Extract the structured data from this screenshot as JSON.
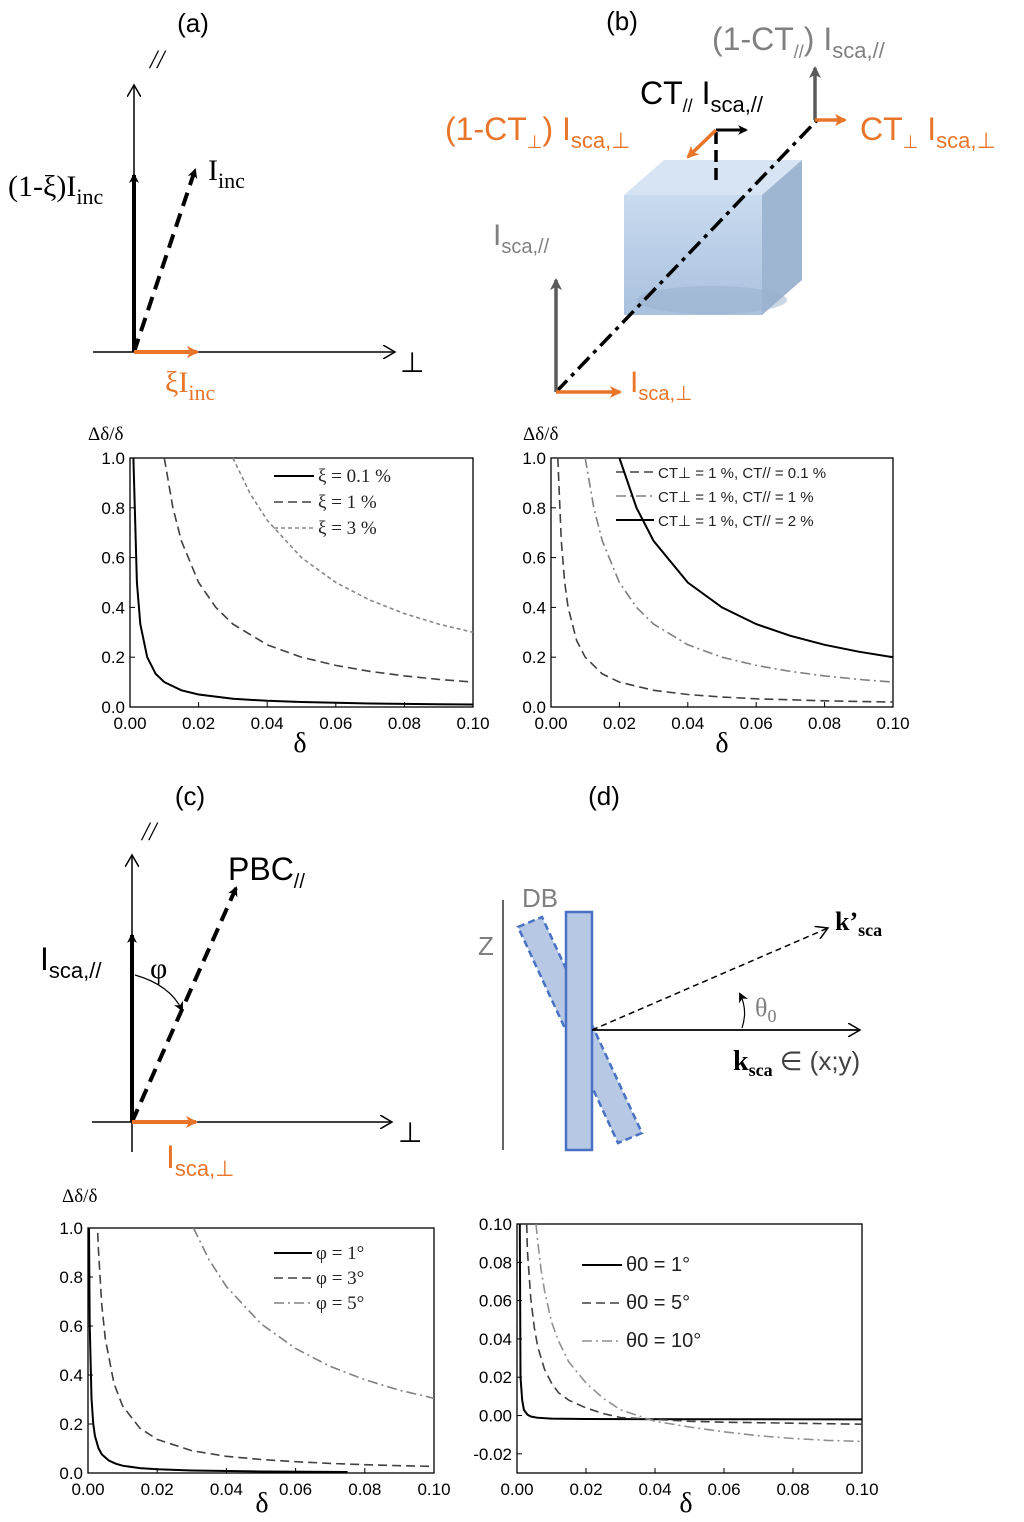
{
  "colors": {
    "orange": "#e8752a",
    "gray": "#808080",
    "black": "#000000",
    "blue_fill": "#b7c8e4",
    "blue_edge": "#4a72c4"
  },
  "panel_a": {
    "label": "(a)",
    "axis_parallel": "//",
    "axis_perp": "⊥",
    "vec_vertical": "(1-ξ)I",
    "vec_vertical_sub": "inc",
    "vec_diag": "I",
    "vec_diag_sub": "inc",
    "vec_horizontal": "ξI",
    "vec_horizontal_sub": "inc"
  },
  "panel_b": {
    "label": "(b)",
    "top_gray": "(1-CT",
    "top_gray_sub": "//",
    "top_gray_tail": ") I",
    "top_gray_tail_sub": "sca,//",
    "mid_black": "CT",
    "mid_black_sub": "//",
    "mid_black_tail": " I",
    "mid_black_tail_sub": "sca,//",
    "left_orange": "(1-CT",
    "left_orange_sub": "⊥",
    "left_orange_tail": ") I",
    "left_orange_tail_sub": "sca,⊥",
    "right_orange": "CT",
    "right_orange_sub": "⊥",
    "right_orange_tail": " I",
    "right_orange_tail_sub": "sca,⊥",
    "origin_gray": "I",
    "origin_gray_sub": "sca,//",
    "origin_orange": "I",
    "origin_orange_sub": "sca,⊥"
  },
  "panel_c": {
    "label": "(c)",
    "axis_parallel": "//",
    "axis_perp": "⊥",
    "pbc": "PBC",
    "pbc_sub": "//",
    "vertical": "I",
    "vertical_sub": "sca,//",
    "phi": "φ",
    "horizontal": "I",
    "horizontal_sub": "sca,⊥"
  },
  "panel_d": {
    "label": "(d)",
    "db": "DB",
    "z": "Z",
    "kprime": "k’",
    "kprime_sub": "sca",
    "theta": "θ",
    "theta_sub": "0",
    "k": "k",
    "k_sub": "sca",
    "k_tail": " ∈ (x;y)"
  },
  "chart_data": [
    {
      "id": "chart-a",
      "type": "line",
      "ylabel": "Δδ/δ",
      "xlabel": "δ",
      "xlim": [
        0,
        0.1
      ],
      "ylim": [
        0,
        1.0
      ],
      "xticks": [
        "0.00",
        "0.02",
        "0.04",
        "0.06",
        "0.08",
        "0.10"
      ],
      "yticks": [
        "0.0",
        "0.2",
        "0.4",
        "0.6",
        "0.8",
        "1.0"
      ],
      "legend_position": "top-right",
      "series": [
        {
          "name": "ξ = 0.1 %",
          "style": "solid",
          "color": "#000000",
          "x": [
            0.001,
            0.002,
            0.003,
            0.005,
            0.0075,
            0.01,
            0.015,
            0.02,
            0.03,
            0.04,
            0.05,
            0.06,
            0.07,
            0.08,
            0.09,
            0.1
          ],
          "y": [
            1.0,
            0.5,
            0.333,
            0.2,
            0.133,
            0.1,
            0.067,
            0.05,
            0.033,
            0.025,
            0.02,
            0.017,
            0.014,
            0.0125,
            0.011,
            0.01
          ]
        },
        {
          "name": "ξ = 1 %",
          "style": "dashed",
          "color": "#404040",
          "x": [
            0.01,
            0.0125,
            0.015,
            0.02,
            0.025,
            0.03,
            0.04,
            0.05,
            0.06,
            0.07,
            0.08,
            0.09,
            0.1
          ],
          "y": [
            1.0,
            0.8,
            0.667,
            0.5,
            0.4,
            0.333,
            0.25,
            0.2,
            0.167,
            0.143,
            0.125,
            0.111,
            0.1
          ]
        },
        {
          "name": "ξ = 3 %",
          "style": "dotted",
          "color": "#888888",
          "x": [
            0.03,
            0.035,
            0.04,
            0.05,
            0.06,
            0.07,
            0.08,
            0.09,
            0.1
          ],
          "y": [
            1.0,
            0.857,
            0.75,
            0.6,
            0.5,
            0.429,
            0.375,
            0.333,
            0.3
          ]
        }
      ]
    },
    {
      "id": "chart-b",
      "type": "line",
      "ylabel": "Δδ/δ",
      "xlabel": "δ",
      "xlim": [
        0,
        0.1
      ],
      "ylim": [
        0,
        1.0
      ],
      "xticks": [
        "0.00",
        "0.02",
        "0.04",
        "0.06",
        "0.08",
        "0.10"
      ],
      "yticks": [
        "0.0",
        "0.2",
        "0.4",
        "0.6",
        "0.8",
        "1.0"
      ],
      "legend_position": "top-right",
      "series": [
        {
          "name": "CT⊥ = 1 %, CT// = 0.1 %",
          "style": "dashed",
          "color": "#404040",
          "x": [
            0.002,
            0.003,
            0.004,
            0.005,
            0.0075,
            0.01,
            0.015,
            0.02,
            0.03,
            0.04,
            0.05,
            0.06,
            0.07,
            0.08,
            0.09,
            0.1
          ],
          "y": [
            1.0,
            0.667,
            0.5,
            0.4,
            0.267,
            0.2,
            0.133,
            0.1,
            0.067,
            0.05,
            0.04,
            0.033,
            0.029,
            0.025,
            0.022,
            0.02
          ]
        },
        {
          "name": "CT⊥ = 1 %, CT// = 1 %",
          "style": "dashdot",
          "color": "#808080",
          "x": [
            0.01,
            0.0125,
            0.015,
            0.02,
            0.025,
            0.03,
            0.04,
            0.05,
            0.06,
            0.07,
            0.08,
            0.09,
            0.1
          ],
          "y": [
            1.0,
            0.8,
            0.667,
            0.5,
            0.4,
            0.333,
            0.25,
            0.2,
            0.167,
            0.143,
            0.125,
            0.111,
            0.1
          ]
        },
        {
          "name": "CT⊥ = 1 %, CT// = 2 %",
          "style": "solid",
          "color": "#000000",
          "x": [
            0.02,
            0.025,
            0.03,
            0.04,
            0.05,
            0.06,
            0.07,
            0.08,
            0.09,
            0.1
          ],
          "y": [
            1.0,
            0.8,
            0.667,
            0.5,
            0.4,
            0.333,
            0.286,
            0.25,
            0.222,
            0.2
          ]
        }
      ]
    },
    {
      "id": "chart-c",
      "type": "line",
      "ylabel": "Δδ/δ",
      "xlabel": "δ",
      "xlim": [
        0,
        0.1
      ],
      "ylim": [
        0,
        1.0
      ],
      "xticks": [
        "0.00",
        "0.02",
        "0.04",
        "0.06",
        "0.08",
        "0.10"
      ],
      "yticks": [
        "0.0",
        "0.2",
        "0.4",
        "0.6",
        "0.8",
        "1.0"
      ],
      "legend_position": "top-right",
      "series": [
        {
          "name": "φ = 1°",
          "style": "solid",
          "color": "#000000",
          "x": [
            0.0003,
            0.0005,
            0.001,
            0.0015,
            0.002,
            0.003,
            0.004,
            0.006,
            0.008,
            0.01,
            0.015,
            0.02,
            0.03,
            0.05,
            0.075
          ],
          "y": [
            1.0,
            0.609,
            0.305,
            0.203,
            0.152,
            0.102,
            0.076,
            0.051,
            0.038,
            0.03,
            0.02,
            0.015,
            0.01,
            0.006,
            0.004
          ]
        },
        {
          "name": "φ = 3°",
          "style": "dashed",
          "color": "#404040",
          "x": [
            0.0028,
            0.003,
            0.004,
            0.005,
            0.0075,
            0.01,
            0.015,
            0.02,
            0.03,
            0.04,
            0.05,
            0.06,
            0.07,
            0.08,
            0.09,
            0.1
          ],
          "y": [
            0.98,
            0.914,
            0.685,
            0.548,
            0.365,
            0.274,
            0.183,
            0.137,
            0.091,
            0.068,
            0.055,
            0.046,
            0.039,
            0.034,
            0.03,
            0.027
          ]
        },
        {
          "name": "φ = 5°",
          "style": "dashdot",
          "color": "#808080",
          "x": [
            0.0305,
            0.035,
            0.04,
            0.05,
            0.06,
            0.07,
            0.08,
            0.09,
            0.1
          ],
          "y": [
            1.0,
            0.87,
            0.761,
            0.609,
            0.508,
            0.435,
            0.381,
            0.338,
            0.305
          ]
        }
      ]
    },
    {
      "id": "chart-d",
      "type": "line",
      "ylabel": "",
      "xlabel": "δ",
      "xlim": [
        0,
        0.1
      ],
      "ylim": [
        -0.03,
        0.1
      ],
      "xticks": [
        "0.00",
        "0.02",
        "0.04",
        "0.06",
        "0.08",
        "0.10"
      ],
      "yticks": [
        "-0.02",
        "0.00",
        "0.02",
        "0.04",
        "0.06",
        "0.08",
        "0.10"
      ],
      "legend_position": "top-center",
      "series": [
        {
          "name": "θ0 = 1°",
          "style": "solid",
          "color": "#000000",
          "x": [
            0.0008,
            0.001,
            0.0015,
            0.002,
            0.003,
            0.004,
            0.006,
            0.01,
            0.02,
            0.05,
            0.1
          ],
          "y": [
            0.1,
            0.02,
            0.008,
            0.003,
            0.0005,
            -0.0005,
            -0.0012,
            -0.0016,
            -0.0018,
            -0.0019,
            -0.002
          ]
        },
        {
          "name": "θ0 = 5°",
          "style": "dashed",
          "color": "#404040",
          "x": [
            0.0028,
            0.003,
            0.004,
            0.005,
            0.006,
            0.008,
            0.01,
            0.012,
            0.015,
            0.02,
            0.025,
            0.03,
            0.04,
            0.05,
            0.06,
            0.08,
            0.1
          ],
          "y": [
            0.1,
            0.086,
            0.061,
            0.046,
            0.036,
            0.024,
            0.017,
            0.012,
            0.008,
            0.004,
            0.001,
            -0.001,
            -0.002,
            -0.003,
            -0.0035,
            -0.004,
            -0.0045
          ]
        },
        {
          "name": "θ0 = 10°",
          "style": "dashdot",
          "color": "#909090",
          "x": [
            0.0055,
            0.006,
            0.007,
            0.008,
            0.01,
            0.012,
            0.015,
            0.02,
            0.025,
            0.03,
            0.04,
            0.05,
            0.06,
            0.07,
            0.08,
            0.09,
            0.1
          ],
          "y": [
            0.1,
            0.091,
            0.076,
            0.065,
            0.049,
            0.039,
            0.028,
            0.017,
            0.009,
            0.003,
            -0.003,
            -0.006,
            -0.0085,
            -0.0105,
            -0.012,
            -0.013,
            -0.0135
          ]
        }
      ]
    }
  ]
}
